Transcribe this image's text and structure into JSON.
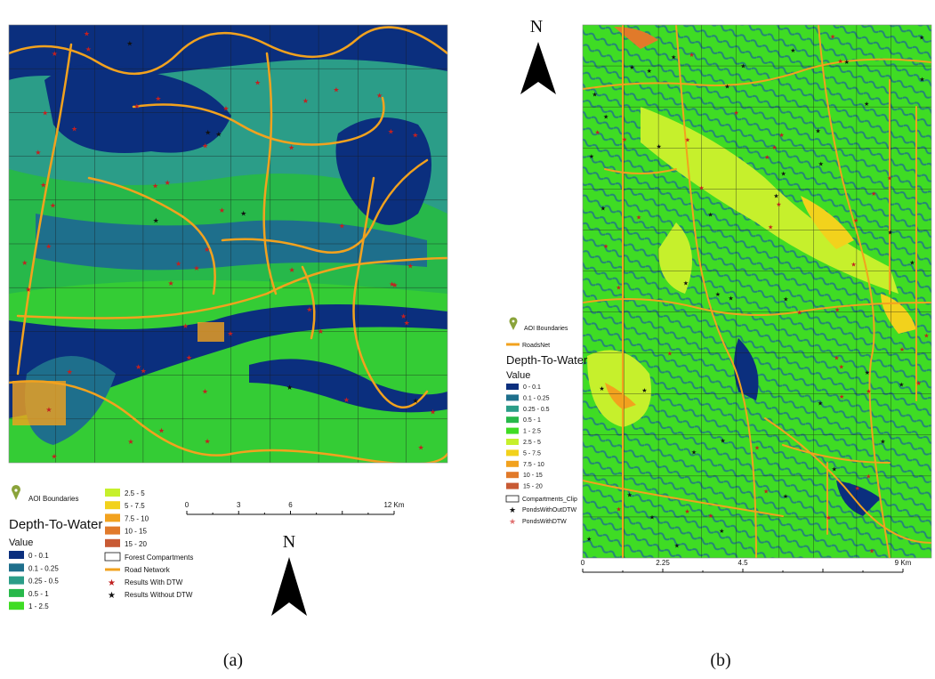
{
  "panels": [
    {
      "caption": "(a)",
      "north": "N",
      "legend": {
        "aoi": "AOI Boundaries",
        "title": "Depth-To-Water",
        "subtitle": "Value",
        "classes": [
          {
            "label": "0 - 0.1",
            "color": "#0b2f7e"
          },
          {
            "label": "0.1 - 0.25",
            "color": "#1e6f8c"
          },
          {
            "label": "0.25 - 0.5",
            "color": "#2b9d88"
          },
          {
            "label": "0.5 - 1",
            "color": "#27b84a"
          },
          {
            "label": "1 - 2.5",
            "color": "#3fdc24"
          },
          {
            "label": "2.5 - 5",
            "color": "#c6f02c"
          },
          {
            "label": "5 - 7.5",
            "color": "#f2d21c"
          },
          {
            "label": "7.5 - 10",
            "color": "#f2a21e"
          },
          {
            "label": "10 - 15",
            "color": "#e17a2a"
          },
          {
            "label": "15 - 20",
            "color": "#c85a34"
          }
        ],
        "compartments": "Forest Compartments",
        "roads": "Road Network",
        "with_dtw": "Results With DTW",
        "without_dtw": "Results Without DTW"
      },
      "scale_bar": [
        "0",
        "3",
        "6",
        "12 Km"
      ]
    },
    {
      "caption": "(b)",
      "north": "N",
      "legend": {
        "aoi": "AOI Boundaries",
        "roads": "RoadsNet",
        "title": "Depth-To-Water",
        "subtitle": "Value",
        "classes": [
          {
            "label": "0 - 0.1",
            "color": "#0b2f7e"
          },
          {
            "label": "0.1 - 0.25",
            "color": "#1e6f8c"
          },
          {
            "label": "0.25 - 0.5",
            "color": "#2b9d88"
          },
          {
            "label": "0.5 - 1",
            "color": "#27b84a"
          },
          {
            "label": "1 - 2.5",
            "color": "#3fdc24"
          },
          {
            "label": "2.5 - 5",
            "color": "#c6f02c"
          },
          {
            "label": "5 - 7.5",
            "color": "#f2d21c"
          },
          {
            "label": "7.5 - 10",
            "color": "#f2a21e"
          },
          {
            "label": "10 - 15",
            "color": "#e17a2a"
          },
          {
            "label": "15 - 20",
            "color": "#c85a34"
          }
        ],
        "compartments": "Compartments_Clip",
        "without_dtw": "PondsWithOutDTW",
        "with_dtw": "PondsWithDTW"
      },
      "scale_bar": [
        "0",
        "2.25",
        "4.5",
        "9 Km"
      ]
    }
  ]
}
